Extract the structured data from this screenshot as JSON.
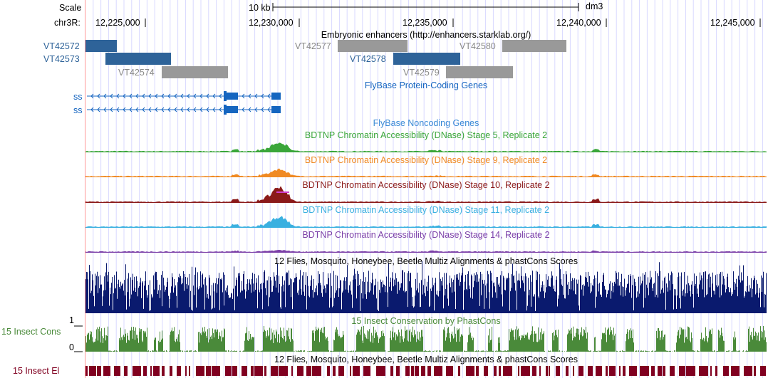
{
  "ruler": {
    "scale_label": "Scale",
    "chrom_label": "chr3R:",
    "scale_bar_text": "10 kb",
    "assembly": "dm3",
    "ticks": [
      "12,225,000",
      "12,230,000",
      "12,235,000",
      "12,240,000",
      "12,245,000"
    ]
  },
  "tracks": {
    "enhancers": {
      "title": "Embryonic enhancers (http://enhancers.starklab.org/)",
      "items": [
        {
          "name": "VT42572",
          "color": "#2e6399"
        },
        {
          "name": "VT42573",
          "color": "#2e6399"
        },
        {
          "name": "VT42574",
          "color": "#999999"
        },
        {
          "name": "VT42577",
          "color": "#999999"
        },
        {
          "name": "VT42578",
          "color": "#2e6399"
        },
        {
          "name": "VT42579",
          "color": "#999999"
        },
        {
          "name": "VT42580",
          "color": "#999999"
        }
      ]
    },
    "flybase_coding": {
      "title": "FlyBase Protein-Coding Genes",
      "genes": [
        "ss",
        "ss"
      ],
      "color": "#1565c0"
    },
    "flybase_noncoding": {
      "title": "FlyBase Noncoding Genes",
      "color": "#3b8ad6"
    },
    "dnase": [
      {
        "title": "BDTNP Chromatin Accessibility (DNase) Stage 5, Replicate 2",
        "color": "#3aa63a"
      },
      {
        "title": "BDTNP Chromatin Accessibility (DNase) Stage 9, Replicate 2",
        "color": "#f08a24"
      },
      {
        "title": "BDTNP Chromatin Accessibility (DNase) Stage 10, Replicate 2",
        "color": "#8b1a1a"
      },
      {
        "title": "BDTNP Chromatin Accessibility (DNase) Stage 11, Replicate 2",
        "color": "#3ab0e0"
      },
      {
        "title": "BDTNP Chromatin Accessibility (DNase) Stage 14, Replicate 2",
        "color": "#7b3fa8"
      }
    ],
    "multiz": {
      "title": "12 Flies, Mosquito, Honeybee, Beetle Multiz Alignments & phastCons Scores",
      "color": "#0a1a6e"
    },
    "phastcons": {
      "title": "15 Insect Conservation by PhastCons",
      "side_label": "15 Insect Cons",
      "axis_max": "1",
      "axis_min": "0",
      "color": "#4a8a3a"
    },
    "elements": {
      "title": "12 Flies, Mosquito, Honeybee, Beetle Multiz Alignments & phastCons Scores",
      "side_label": "15 Insect El",
      "color": "#800020"
    }
  },
  "colors": {
    "grid": "#d8d8ff",
    "left_border": "#ff9999",
    "text_gray": "#888888"
  }
}
